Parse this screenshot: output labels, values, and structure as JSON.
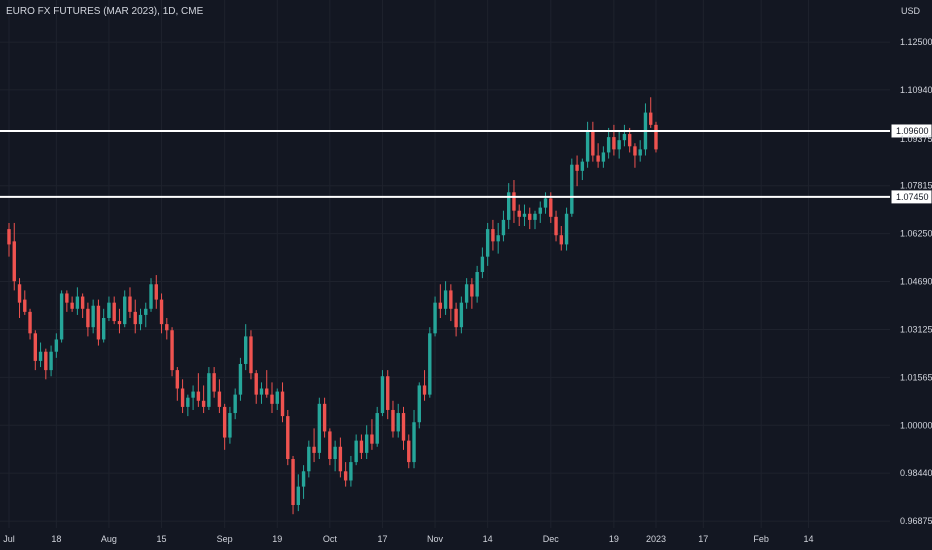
{
  "header": {
    "title": "EURO FX FUTURES (MAR 2023), 1D, CME",
    "currency": "USD"
  },
  "colors": {
    "background": "#131722",
    "grid": "#1e222d",
    "up": "#26a69a",
    "down": "#ef5350",
    "text": "#d1d4dc",
    "level_line": "#ffffff"
  },
  "chart_data": {
    "type": "candlestick",
    "title": "EURO FX FUTURES (MAR 2023), 1D, CME",
    "currency": "USD",
    "y_ticks": [
      1.125,
      1.1094,
      1.07815,
      1.0625,
      1.0469,
      1.03125,
      1.01565,
      1.0,
      0.9844,
      0.96875
    ],
    "y_tick_labels": [
      "1.12500",
      "1.10940",
      "1.07815",
      "1.06250",
      "1.04690",
      "1.03125",
      "1.01565",
      "1.00000",
      "0.98440",
      "0.96875"
    ],
    "ylim": [
      0.9665,
      1.1322
    ],
    "x_labels": [
      {
        "index": 0,
        "label": "Jul"
      },
      {
        "index": 9,
        "label": "18"
      },
      {
        "index": 19,
        "label": "Aug"
      },
      {
        "index": 29,
        "label": "15"
      },
      {
        "index": 41,
        "label": "Sep"
      },
      {
        "index": 51,
        "label": "19"
      },
      {
        "index": 61,
        "label": "Oct"
      },
      {
        "index": 71,
        "label": "17"
      },
      {
        "index": 81,
        "label": "Nov"
      },
      {
        "index": 91,
        "label": "14"
      },
      {
        "index": 103,
        "label": "Dec"
      },
      {
        "index": 115,
        "label": "19"
      },
      {
        "index": 123,
        "label": "2023"
      },
      {
        "index": 132,
        "label": "17"
      },
      {
        "index": 143,
        "label": "Feb"
      },
      {
        "index": 152,
        "label": "14"
      }
    ],
    "horizontal_levels": [
      {
        "value": 1.096,
        "label": "1.09600"
      },
      {
        "value": 1.0745,
        "label": "1.07450"
      }
    ],
    "hidden_price_label": "1.09375",
    "grid": true,
    "candles": [
      [
        1.064,
        1.066,
        1.055,
        1.059
      ],
      [
        1.06,
        1.066,
        1.044,
        1.047
      ],
      [
        1.046,
        1.048,
        1.035,
        1.04
      ],
      [
        1.041,
        1.044,
        1.036,
        1.037
      ],
      [
        1.037,
        1.038,
        1.028,
        1.03
      ],
      [
        1.03,
        1.031,
        1.018,
        1.021
      ],
      [
        1.021,
        1.027,
        1.019,
        1.024
      ],
      [
        1.024,
        1.025,
        1.015,
        1.018
      ],
      [
        1.018,
        1.026,
        1.016,
        1.024
      ],
      [
        1.024,
        1.03,
        1.022,
        1.028
      ],
      [
        1.028,
        1.044,
        1.027,
        1.043
      ],
      [
        1.043,
        1.044,
        1.037,
        1.04
      ],
      [
        1.04,
        1.042,
        1.037,
        1.038
      ],
      [
        1.038,
        1.045,
        1.036,
        1.042
      ],
      [
        1.042,
        1.043,
        1.035,
        1.038
      ],
      [
        1.038,
        1.04,
        1.029,
        1.032
      ],
      [
        1.032,
        1.041,
        1.03,
        1.039
      ],
      [
        1.039,
        1.041,
        1.026,
        1.028
      ],
      [
        1.028,
        1.038,
        1.027,
        1.035
      ],
      [
        1.035,
        1.042,
        1.034,
        1.04
      ],
      [
        1.04,
        1.042,
        1.033,
        1.034
      ],
      [
        1.034,
        1.038,
        1.03,
        1.033
      ],
      [
        1.033,
        1.044,
        1.032,
        1.042
      ],
      [
        1.042,
        1.045,
        1.035,
        1.037
      ],
      [
        1.037,
        1.041,
        1.03,
        1.033
      ],
      [
        1.033,
        1.038,
        1.031,
        1.036
      ],
      [
        1.036,
        1.04,
        1.032,
        1.038
      ],
      [
        1.038,
        1.048,
        1.037,
        1.046
      ],
      [
        1.046,
        1.049,
        1.038,
        1.041
      ],
      [
        1.041,
        1.043,
        1.03,
        1.033
      ],
      [
        1.033,
        1.035,
        1.028,
        1.031
      ],
      [
        1.031,
        1.032,
        1.016,
        1.018
      ],
      [
        1.018,
        1.019,
        1.008,
        1.012
      ],
      [
        1.012,
        1.015,
        1.004,
        1.006
      ],
      [
        1.006,
        1.01,
        1.003,
        1.009
      ],
      [
        1.009,
        1.013,
        1.005,
        1.011
      ],
      [
        1.011,
        1.017,
        1.006,
        1.008
      ],
      [
        1.008,
        1.013,
        1.004,
        1.006
      ],
      [
        1.006,
        1.019,
        1.005,
        1.017
      ],
      [
        1.017,
        1.019,
        1.009,
        1.011
      ],
      [
        1.011,
        1.015,
        1.004,
        1.006
      ],
      [
        1.006,
        1.007,
        0.992,
        0.996
      ],
      [
        0.996,
        1.006,
        0.994,
        1.004
      ],
      [
        1.004,
        1.012,
        1.002,
        1.01
      ],
      [
        1.01,
        1.022,
        1.008,
        1.02
      ],
      [
        1.02,
        1.033,
        1.018,
        1.029
      ],
      [
        1.029,
        1.031,
        1.015,
        1.017
      ],
      [
        1.017,
        1.018,
        1.007,
        1.01
      ],
      [
        1.01,
        1.014,
        1.007,
        1.012
      ],
      [
        1.012,
        1.018,
        1.009,
        1.01
      ],
      [
        1.01,
        1.014,
        1.004,
        1.007
      ],
      [
        1.007,
        1.012,
        1.005,
        1.011
      ],
      [
        1.011,
        1.014,
        1.001,
        1.003
      ],
      [
        1.003,
        1.005,
        0.987,
        0.989
      ],
      [
        0.989,
        0.99,
        0.971,
        0.974
      ],
      [
        0.974,
        0.984,
        0.972,
        0.98
      ],
      [
        0.98,
        0.987,
        0.976,
        0.985
      ],
      [
        0.985,
        0.995,
        0.983,
        0.993
      ],
      [
        0.993,
        0.999,
        0.988,
        0.991
      ],
      [
        0.991,
        1.009,
        0.989,
        1.007
      ],
      [
        1.007,
        1.009,
        0.996,
        0.998
      ],
      [
        0.998,
        0.999,
        0.987,
        0.989
      ],
      [
        0.989,
        0.995,
        0.985,
        0.993
      ],
      [
        0.993,
        0.996,
        0.983,
        0.985
      ],
      [
        0.985,
        0.988,
        0.98,
        0.982
      ],
      [
        0.982,
        0.99,
        0.98,
        0.988
      ],
      [
        0.988,
        0.997,
        0.987,
        0.995
      ],
      [
        0.995,
        0.997,
        0.989,
        0.991
      ],
      [
        0.991,
        1.0,
        0.989,
        0.997
      ],
      [
        0.997,
        1.002,
        0.992,
        0.994
      ],
      [
        0.994,
        1.006,
        0.993,
        1.004
      ],
      [
        1.004,
        1.018,
        1.003,
        1.016
      ],
      [
        1.016,
        1.018,
        1.002,
        1.005
      ],
      [
        1.005,
        1.008,
        0.996,
        0.998
      ],
      [
        0.998,
        1.007,
        0.996,
        1.004
      ],
      [
        1.004,
        1.006,
        0.992,
        0.995
      ],
      [
        0.995,
        0.997,
        0.986,
        0.988
      ],
      [
        0.988,
        1.005,
        0.986,
        1.001
      ],
      [
        1.001,
        1.014,
        0.999,
        1.013
      ],
      [
        1.013,
        1.018,
        1.008,
        1.01
      ],
      [
        1.01,
        1.032,
        1.009,
        1.03
      ],
      [
        1.03,
        1.042,
        1.029,
        1.04
      ],
      [
        1.04,
        1.046,
        1.035,
        1.038
      ],
      [
        1.038,
        1.047,
        1.036,
        1.044
      ],
      [
        1.044,
        1.046,
        1.034,
        1.038
      ],
      [
        1.038,
        1.04,
        1.029,
        1.032
      ],
      [
        1.032,
        1.042,
        1.03,
        1.04
      ],
      [
        1.04,
        1.048,
        1.038,
        1.046
      ],
      [
        1.046,
        1.048,
        1.038,
        1.042
      ],
      [
        1.042,
        1.052,
        1.04,
        1.05
      ],
      [
        1.05,
        1.058,
        1.048,
        1.055
      ],
      [
        1.055,
        1.066,
        1.052,
        1.064
      ],
      [
        1.064,
        1.067,
        1.057,
        1.06
      ],
      [
        1.06,
        1.066,
        1.056,
        1.062
      ],
      [
        1.062,
        1.07,
        1.06,
        1.067
      ],
      [
        1.067,
        1.079,
        1.064,
        1.076
      ],
      [
        1.076,
        1.08,
        1.066,
        1.07
      ],
      [
        1.07,
        1.072,
        1.065,
        1.068
      ],
      [
        1.068,
        1.072,
        1.065,
        1.069
      ],
      [
        1.069,
        1.071,
        1.064,
        1.067
      ],
      [
        1.067,
        1.07,
        1.064,
        1.069
      ],
      [
        1.069,
        1.073,
        1.066,
        1.071
      ],
      [
        1.071,
        1.076,
        1.069,
        1.074
      ],
      [
        1.074,
        1.076,
        1.066,
        1.068
      ],
      [
        1.068,
        1.07,
        1.06,
        1.062
      ],
      [
        1.062,
        1.065,
        1.057,
        1.059
      ],
      [
        1.059,
        1.071,
        1.057,
        1.069
      ],
      [
        1.069,
        1.087,
        1.068,
        1.085
      ],
      [
        1.085,
        1.088,
        1.078,
        1.083
      ],
      [
        1.083,
        1.087,
        1.08,
        1.086
      ],
      [
        1.086,
        1.099,
        1.084,
        1.096
      ],
      [
        1.096,
        1.099,
        1.086,
        1.088
      ],
      [
        1.088,
        1.092,
        1.084,
        1.086
      ],
      [
        1.086,
        1.091,
        1.084,
        1.089
      ],
      [
        1.089,
        1.097,
        1.087,
        1.094
      ],
      [
        1.094,
        1.098,
        1.088,
        1.09
      ],
      [
        1.09,
        1.096,
        1.087,
        1.093
      ],
      [
        1.093,
        1.098,
        1.091,
        1.095
      ],
      [
        1.095,
        1.097,
        1.089,
        1.091
      ],
      [
        1.091,
        1.092,
        1.084,
        1.088
      ],
      [
        1.088,
        1.093,
        1.086,
        1.09
      ],
      [
        1.09,
        1.105,
        1.088,
        1.102
      ],
      [
        1.102,
        1.107,
        1.097,
        1.098
      ],
      [
        1.098,
        1.099,
        1.089,
        1.09
      ]
    ],
    "candle_x_indices": [
      0,
      1,
      2,
      3,
      4,
      5,
      6,
      7,
      8,
      9,
      10,
      11,
      12,
      13,
      14,
      15,
      16,
      17,
      18,
      19,
      20,
      21,
      22,
      23,
      24,
      25,
      26,
      27,
      28,
      29,
      30,
      31,
      32,
      33,
      34,
      35,
      36,
      37,
      38,
      39,
      40,
      41,
      42,
      43,
      44,
      45,
      46,
      47,
      48,
      49,
      50,
      51,
      52,
      53,
      54,
      55,
      56,
      57,
      58,
      59,
      60,
      61,
      62,
      63,
      64,
      65,
      66,
      67,
      68,
      69,
      70,
      71,
      72,
      73,
      74,
      75,
      76,
      77,
      78,
      79,
      80,
      81,
      82,
      83,
      84,
      85,
      86,
      87,
      88,
      89,
      90,
      91,
      92,
      93,
      94,
      95,
      96,
      97,
      98,
      99,
      100,
      101,
      102,
      103,
      104,
      105,
      106,
      107,
      108,
      109,
      110,
      111,
      112,
      113,
      114,
      115,
      116,
      117,
      118,
      119,
      120,
      121,
      122,
      123,
      124,
      125,
      126,
      127
    ]
  }
}
